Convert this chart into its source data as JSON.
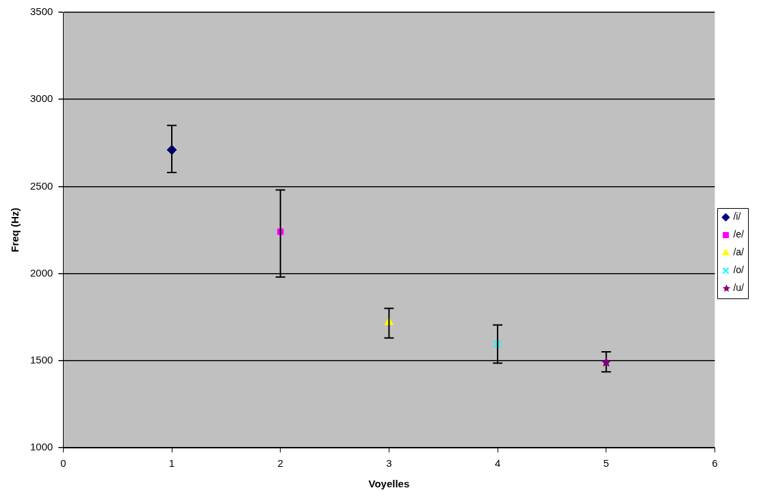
{
  "chart_data": {
    "type": "scatter",
    "xlabel": "Voyelles",
    "ylabel": "Freq (Hz)",
    "xlim": [
      0,
      6
    ],
    "xticks": [
      0,
      1,
      2,
      3,
      4,
      5,
      6
    ],
    "ylim": [
      1000,
      3500
    ],
    "yticks": [
      1000,
      1500,
      2000,
      2500,
      3000,
      3500
    ],
    "grid": "y",
    "legend": "right",
    "series": [
      {
        "name": "/i/",
        "color": "#000080",
        "marker": "diamond",
        "x": [
          1
        ],
        "values": [
          2710
        ],
        "errors": [
          [
            2580,
            2850
          ]
        ]
      },
      {
        "name": "/e/",
        "color": "#ff00ff",
        "marker": "square",
        "x": [
          2
        ],
        "values": [
          2240
        ],
        "errors": [
          [
            1980,
            2480
          ]
        ]
      },
      {
        "name": "/a/",
        "color": "#ffff00",
        "marker": "triangle",
        "x": [
          3
        ],
        "values": [
          1720
        ],
        "errors": [
          [
            1630,
            1800
          ]
        ]
      },
      {
        "name": "/o/",
        "color": "#00ffff",
        "marker": "cross",
        "x": [
          4
        ],
        "values": [
          1595
        ],
        "errors": [
          [
            1485,
            1705
          ]
        ]
      },
      {
        "name": "/u/",
        "color": "#800080",
        "marker": "star",
        "x": [
          5
        ],
        "values": [
          1490
        ],
        "errors": [
          [
            1435,
            1550
          ]
        ]
      }
    ]
  }
}
